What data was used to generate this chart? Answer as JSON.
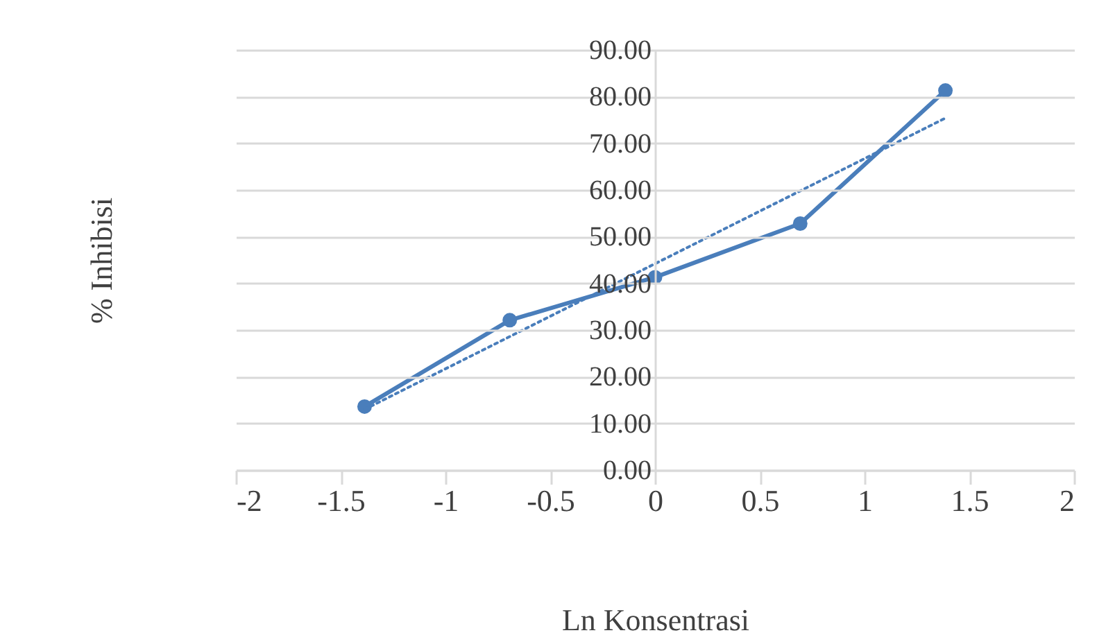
{
  "chart_data": {
    "type": "line",
    "xlabel": "Ln Konsentrasi",
    "ylabel": "% Inhibisi",
    "xlim": [
      -2,
      2
    ],
    "xticks": [
      -2,
      -1.5,
      -1,
      -0.5,
      0,
      0.5,
      1,
      1.5,
      2
    ],
    "ylim": [
      0,
      90
    ],
    "yticks": [
      {
        "value": 0,
        "label": "0.00"
      },
      {
        "value": 10,
        "label": "10.00"
      },
      {
        "value": 20,
        "label": "20.00"
      },
      {
        "value": 30,
        "label": "30.00"
      },
      {
        "value": 40,
        "label": "40.00"
      },
      {
        "value": 50,
        "label": "50.00"
      },
      {
        "value": 60,
        "label": "60.00"
      },
      {
        "value": 70,
        "label": "70.00"
      },
      {
        "value": 80,
        "label": "80.00"
      },
      {
        "value": 90,
        "label": "90.00"
      }
    ],
    "grid": "y",
    "legend": false,
    "series": [
      {
        "color": "#4a7ebb",
        "marker": "circle",
        "line_style": "solid",
        "x": [
          -1.386,
          -0.693,
          0,
          0.693,
          1.386
        ],
        "values": [
          13.6,
          32.1,
          41.3,
          52.8,
          81.3
        ]
      },
      {
        "color": "#4a7ebb",
        "marker": "none",
        "line_style": "dotted",
        "x": [
          -1.386,
          1.386
        ],
        "values": [
          13.0,
          75.4
        ]
      }
    ]
  }
}
